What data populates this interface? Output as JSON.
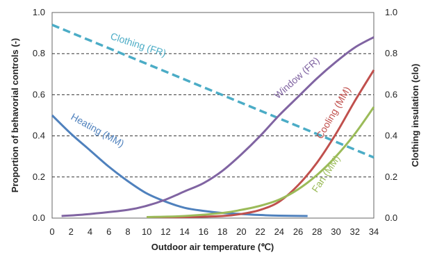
{
  "chart_data": {
    "type": "line",
    "xlabel": "Outdoor air temperature (℃)",
    "ylabel": "Proportion of behavorial controls  (-)",
    "y2label": "Clothing insulation (clo)",
    "xlim": [
      0,
      34
    ],
    "ylim": [
      0,
      1.0
    ],
    "y2lim": [
      0,
      1.0
    ],
    "x_ticks": [
      "0",
      "2",
      "4",
      "6",
      "8",
      "10",
      "12",
      "14",
      "16",
      "18",
      "20",
      "22",
      "24",
      "26",
      "28",
      "30",
      "32",
      "34"
    ],
    "y_ticks": [
      "0.0",
      "0.2",
      "0.4",
      "0.6",
      "0.8",
      "1.0"
    ],
    "y2_ticks": [
      "0.0",
      "0.2",
      "0.4",
      "0.6",
      "0.8",
      "1.0"
    ],
    "grid": "horizontal dashed",
    "series": [
      {
        "name": "Clothing (FR)",
        "axis": "right",
        "color": "#4bacc6",
        "style": "dashed",
        "x": [
          0,
          34
        ],
        "y": [
          0.94,
          0.295
        ]
      },
      {
        "name": "Heating (MM)",
        "axis": "left",
        "color": "#4f81bd",
        "style": "solid",
        "x": [
          0,
          2,
          4,
          6,
          8,
          10,
          12,
          14,
          16,
          18,
          20,
          22,
          24,
          27
        ],
        "y": [
          0.5,
          0.41,
          0.33,
          0.25,
          0.18,
          0.12,
          0.08,
          0.05,
          0.035,
          0.025,
          0.02,
          0.015,
          0.012,
          0.01
        ]
      },
      {
        "name": "Window (FR)",
        "axis": "left",
        "color": "#8064a2",
        "style": "solid",
        "x": [
          1,
          4,
          8,
          10,
          12,
          14,
          16,
          18,
          20,
          22,
          24,
          26,
          28,
          30,
          32,
          34
        ],
        "y": [
          0.01,
          0.02,
          0.04,
          0.06,
          0.09,
          0.13,
          0.17,
          0.23,
          0.31,
          0.4,
          0.5,
          0.59,
          0.68,
          0.76,
          0.83,
          0.88
        ]
      },
      {
        "name": "Cooling (MM)",
        "axis": "left",
        "color": "#c0504d",
        "style": "solid",
        "x": [
          10,
          14,
          18,
          20,
          22,
          24,
          26,
          28,
          30,
          32,
          34
        ],
        "y": [
          0.005,
          0.005,
          0.01,
          0.02,
          0.04,
          0.08,
          0.16,
          0.27,
          0.41,
          0.57,
          0.72
        ]
      },
      {
        "name": "Fan (MM)",
        "axis": "left",
        "color": "#9bbb59",
        "style": "solid",
        "x": [
          10,
          14,
          18,
          20,
          22,
          24,
          26,
          28,
          30,
          32,
          34
        ],
        "y": [
          0.005,
          0.01,
          0.025,
          0.04,
          0.06,
          0.09,
          0.14,
          0.21,
          0.3,
          0.41,
          0.54
        ]
      }
    ]
  }
}
